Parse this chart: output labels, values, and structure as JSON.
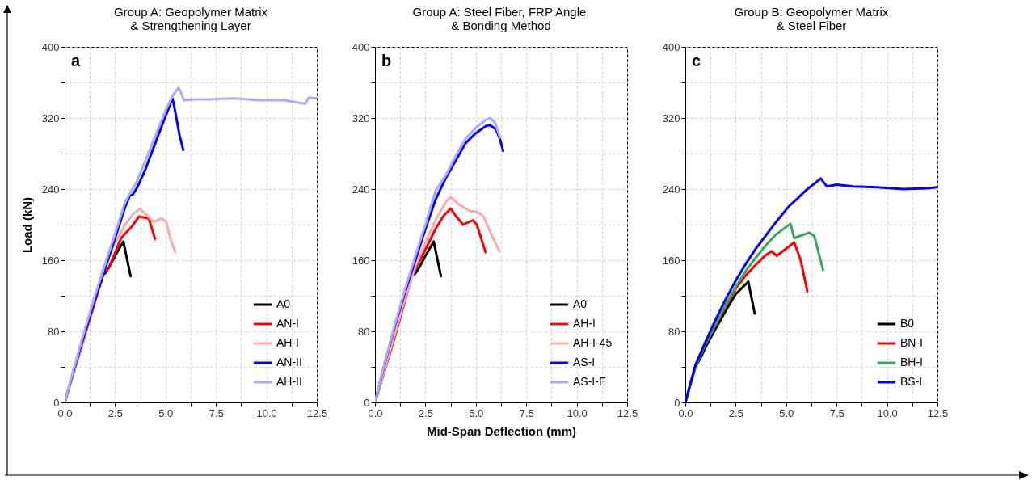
{
  "chart_data": [
    {
      "type": "line",
      "title": "Group A: Geopolymer Matrix\n& Strengthening Layer",
      "ylabel": "Load (kN)",
      "annotations": [
        "a"
      ],
      "grid": true,
      "legend": "bottom right",
      "xlim": [
        0,
        12.5
      ],
      "ylim": [
        0,
        400
      ],
      "xticks": [
        {
          "value": 0,
          "label": "0.0"
        },
        {
          "value": 1.25,
          "label": null
        },
        {
          "value": 2.5,
          "label": "2.5"
        },
        {
          "value": 3.75,
          "label": null
        },
        {
          "value": 5,
          "label": "5.0"
        },
        {
          "value": 6.25,
          "label": null
        },
        {
          "value": 7.5,
          "label": "7.5"
        },
        {
          "value": 8.75,
          "label": null
        },
        {
          "value": 10,
          "label": "10.0"
        },
        {
          "value": 11.25,
          "label": null
        },
        {
          "value": 12.5,
          "label": "12.5"
        }
      ],
      "yticks": [
        0,
        {
          "value": 40,
          "label": null
        },
        80,
        {
          "value": 120,
          "label": null
        },
        160,
        {
          "value": 200,
          "label": null
        },
        240,
        {
          "value": 280,
          "label": null
        },
        320,
        {
          "value": 360,
          "label": null
        },
        400
      ],
      "series": [
        {
          "name": "A0",
          "color": "#000000",
          "x": [
            1.9,
            2.0,
            2.2,
            2.5,
            2.91,
            3.27
          ],
          "values": [
            144,
            145,
            152,
            165,
            181,
            142
          ]
        },
        {
          "name": "AN-I",
          "color": "#ff0000",
          "x": [
            0,
            1,
            1.5,
            1.94,
            2.19,
            2.8,
            3.3,
            3.68,
            4.17,
            4.48
          ],
          "values": [
            0,
            75,
            113,
            146,
            151,
            185,
            197,
            209,
            207,
            184
          ]
        },
        {
          "name": "AH-I",
          "color": "#ffaaaa",
          "x": [
            0,
            1,
            1.5,
            1.9,
            2.5,
            3.0,
            3.4,
            3.74,
            4.1,
            4.42,
            4.8,
            5.04,
            5.23,
            5.48
          ],
          "values": [
            0,
            76,
            115,
            150,
            180,
            200,
            212,
            218,
            210,
            203,
            207,
            203,
            185,
            169
          ]
        },
        {
          "name": "AN-II",
          "color": "#0000ff",
          "x": [
            0,
            0.5,
            1,
            1.5,
            2.0,
            2.5,
            3.0,
            3.24,
            3.39,
            3.6,
            4,
            4.5,
            5.0,
            5.35,
            5.5,
            5.7,
            5.88
          ],
          "values": [
            0,
            40,
            78,
            115,
            150,
            185,
            220,
            233,
            234,
            242,
            262,
            292,
            322,
            342,
            325,
            300,
            284
          ]
        },
        {
          "name": "AH-II",
          "color": "#aaaaff",
          "x": [
            0,
            0.5,
            1.0,
            1.5,
            2.0,
            2.5,
            3.0,
            3.3,
            3.5,
            4.0,
            4.5,
            5.0,
            5.35,
            5.64,
            5.75,
            5.91,
            6.5,
            7.16,
            8.4,
            9.64,
            10.9,
            11.94,
            12.1,
            12.5
          ],
          "values": [
            0,
            42,
            82,
            120,
            155,
            190,
            225,
            238,
            245,
            272,
            300,
            328,
            345,
            354,
            350,
            340,
            341,
            341,
            342,
            340,
            340,
            336,
            343,
            342
          ]
        }
      ]
    },
    {
      "type": "line",
      "title": "Group A: Steel Fiber, FRP Angle,\n& Bonding Method",
      "xlabel": "Mid-Span Deflection (mm)",
      "annotations": [
        "b"
      ],
      "grid": true,
      "legend": "bottom right",
      "xlim": [
        0,
        12.5
      ],
      "ylim": [
        0,
        400
      ],
      "xticks": [
        {
          "value": 0,
          "label": "0.0"
        },
        {
          "value": 1.25,
          "label": null
        },
        {
          "value": 2.5,
          "label": "2.5"
        },
        {
          "value": 3.75,
          "label": null
        },
        {
          "value": 5,
          "label": "5.0"
        },
        {
          "value": 6.25,
          "label": null
        },
        {
          "value": 7.5,
          "label": "7.5"
        },
        {
          "value": 8.75,
          "label": null
        },
        {
          "value": 10,
          "label": "10.0"
        },
        {
          "value": 11.25,
          "label": null
        },
        {
          "value": 12.5,
          "label": "12.5"
        }
      ],
      "yticks": [
        0,
        {
          "value": 40,
          "label": null
        },
        80,
        {
          "value": 120,
          "label": null
        },
        160,
        {
          "value": 200,
          "label": null
        },
        240,
        {
          "value": 280,
          "label": null
        },
        320,
        {
          "value": 360,
          "label": null
        },
        400
      ],
      "series": [
        {
          "name": "A0",
          "color": "#000000",
          "x": [
            1.9,
            2.0,
            2.2,
            2.5,
            2.91,
            3.27
          ],
          "values": [
            144,
            145,
            152,
            165,
            181,
            142
          ]
        },
        {
          "name": "AH-I",
          "color": "#ff0000",
          "x": [
            0,
            1,
            1.8,
            2.0,
            2.5,
            3.0,
            3.4,
            3.75,
            4.0,
            4.37,
            4.86,
            5.05,
            5.3,
            5.48
          ],
          "values": [
            0,
            75,
            140,
            150,
            172,
            195,
            210,
            218,
            210,
            200,
            205,
            200,
            182,
            169
          ]
        },
        {
          "name": "AH-I-45",
          "color": "#ffaaaa",
          "x": [
            0,
            1,
            1.5,
            2,
            2.5,
            3,
            3.5,
            3.75,
            4.2,
            4.74,
            5.0,
            5.36,
            5.73,
            6.17
          ],
          "values": [
            0,
            78,
            118,
            153,
            180,
            205,
            225,
            231,
            222,
            215,
            215,
            210,
            191,
            170
          ]
        },
        {
          "name": "AS-I",
          "color": "#0000ff",
          "x": [
            0,
            0.5,
            1,
            1.5,
            2,
            2.5,
            3,
            3.5,
            4,
            4.5,
            5,
            5.5,
            5.7,
            6.0,
            6.2,
            6.35
          ],
          "values": [
            0,
            45,
            87,
            125,
            160,
            195,
            228,
            252,
            272,
            292,
            303,
            311,
            312,
            307,
            296,
            283
          ]
        },
        {
          "name": "AS-I-E",
          "color": "#aaaaff",
          "x": [
            0,
            0.5,
            1,
            1.5,
            2,
            2.5,
            3,
            3.5,
            4,
            4.5,
            5,
            5.5,
            5.7,
            5.95,
            6.2
          ],
          "values": [
            0,
            46,
            89,
            128,
            165,
            200,
            238,
            255,
            277,
            297,
            309,
            318,
            320,
            315,
            298
          ]
        }
      ]
    },
    {
      "type": "line",
      "title": "Group B: Geopolymer Matrix\n& Steel Fiber",
      "annotations": [
        "c"
      ],
      "grid": true,
      "legend": "bottom right",
      "xlim": [
        0,
        12.5
      ],
      "ylim": [
        0,
        400
      ],
      "xticks": [
        {
          "value": 0,
          "label": "0.0"
        },
        {
          "value": 1.25,
          "label": null
        },
        {
          "value": 2.5,
          "label": "2.5"
        },
        {
          "value": 3.75,
          "label": null
        },
        {
          "value": 5,
          "label": "5.0"
        },
        {
          "value": 6.25,
          "label": null
        },
        {
          "value": 7.5,
          "label": "7.5"
        },
        {
          "value": 8.75,
          "label": null
        },
        {
          "value": 10,
          "label": "10.0"
        },
        {
          "value": 11.25,
          "label": null
        },
        {
          "value": 12.5,
          "label": "12.5"
        }
      ],
      "yticks": [
        0,
        {
          "value": 40,
          "label": null
        },
        80,
        {
          "value": 120,
          "label": null
        },
        160,
        {
          "value": 200,
          "label": null
        },
        240,
        {
          "value": 280,
          "label": null
        },
        320,
        {
          "value": 360,
          "label": null
        },
        400
      ],
      "series": [
        {
          "name": "B0",
          "color": "#000000",
          "x": [
            0,
            0.5,
            0.8,
            1,
            1.5,
            2,
            2.5,
            3.0,
            3.12,
            3.44
          ],
          "values": [
            0,
            40,
            52,
            62,
            83,
            103,
            122,
            133,
            136,
            100
          ]
        },
        {
          "name": "BN-I",
          "color": "#ff0000",
          "x": [
            1,
            1.5,
            2,
            2.5,
            3,
            3.5,
            4.0,
            4.28,
            4.53,
            5.0,
            5.4,
            5.71,
            6.05
          ],
          "values": [
            65,
            87,
            108,
            128,
            143,
            155,
            166,
            170,
            165,
            173,
            180,
            161,
            125
          ]
        },
        {
          "name": "BH-I",
          "color": "#33aa55",
          "x": [
            0,
            0.5,
            1,
            1.5,
            2,
            2.5,
            3,
            3.5,
            4,
            4.5,
            5.21,
            5.4,
            6.15,
            6.4,
            6.83
          ],
          "values": [
            0,
            40,
            66,
            88,
            110,
            130,
            148,
            163,
            177,
            189,
            201,
            185,
            191,
            187,
            149
          ]
        },
        {
          "name": "BS-I",
          "color": "#0000ff",
          "x": [
            0,
            0.5,
            1,
            1.5,
            2,
            2.5,
            3,
            3.5,
            4,
            4.5,
            5.15,
            5.5,
            6,
            6.5,
            6.71,
            7.02,
            7.5,
            8.33,
            9.5,
            10.8,
            12,
            12.5
          ],
          "values": [
            0,
            42,
            68,
            93,
            116,
            137,
            156,
            173,
            188,
            203,
            221,
            228,
            239,
            248,
            252,
            243,
            245,
            243,
            242,
            240,
            241,
            242
          ]
        }
      ]
    }
  ]
}
